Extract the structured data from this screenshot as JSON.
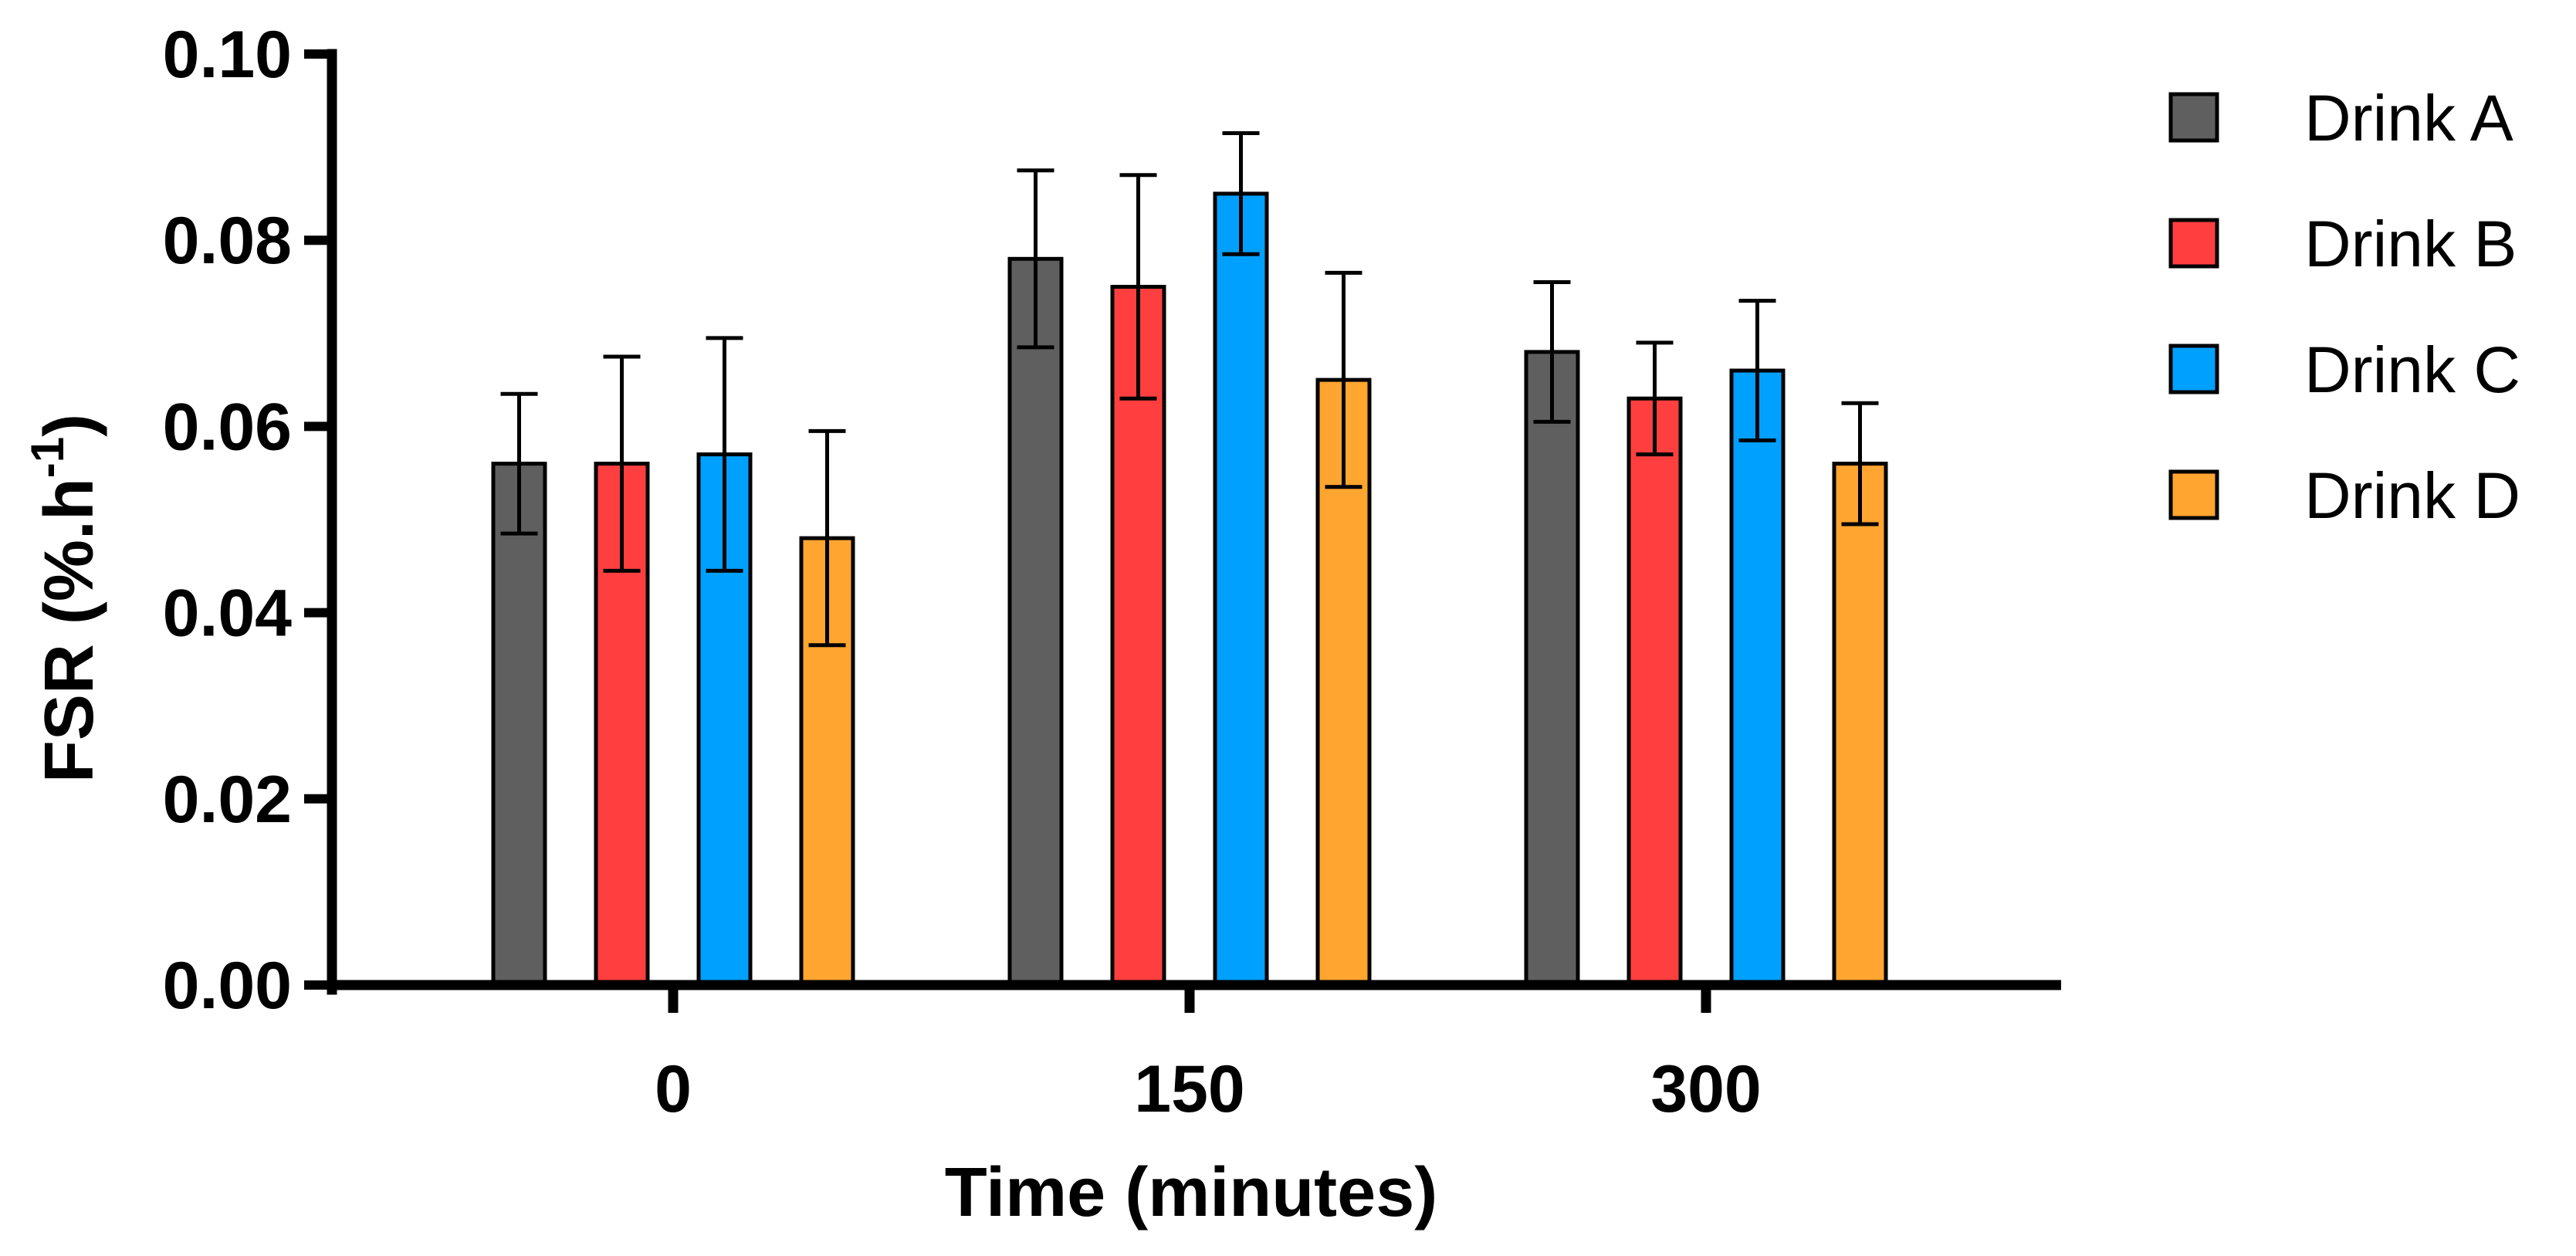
{
  "chart_data": {
    "type": "bar",
    "title": "",
    "xlabel": "Time (minutes)",
    "ylabel_main": "FSR (%.h",
    "ylabel_sup": "-1",
    "ylabel_close": ")",
    "categories": [
      "0",
      "150",
      "300"
    ],
    "ylim": [
      0,
      0.1
    ],
    "yticks": [
      "0.00",
      "0.02",
      "0.04",
      "0.06",
      "0.08",
      "0.10"
    ],
    "ytick_values": [
      0,
      0.02,
      0.04,
      0.06,
      0.08,
      0.1
    ],
    "legend_position": "right",
    "series": [
      {
        "name": "Drink A",
        "color": "#5f5f5f",
        "values": [
          0.056,
          0.078,
          0.068
        ],
        "errors": [
          0.0075,
          0.0095,
          0.0075
        ]
      },
      {
        "name": "Drink B",
        "color": "#ff3f3f",
        "values": [
          0.056,
          0.075,
          0.063
        ],
        "errors": [
          0.0115,
          0.012,
          0.006
        ]
      },
      {
        "name": "Drink C",
        "color": "#00a0ff",
        "values": [
          0.057,
          0.085,
          0.066
        ],
        "errors": [
          0.0125,
          0.0065,
          0.0075
        ]
      },
      {
        "name": "Drink D",
        "color": "#ffa530",
        "values": [
          0.048,
          0.065,
          0.056
        ],
        "errors": [
          0.0115,
          0.0115,
          0.0065
        ]
      }
    ]
  }
}
